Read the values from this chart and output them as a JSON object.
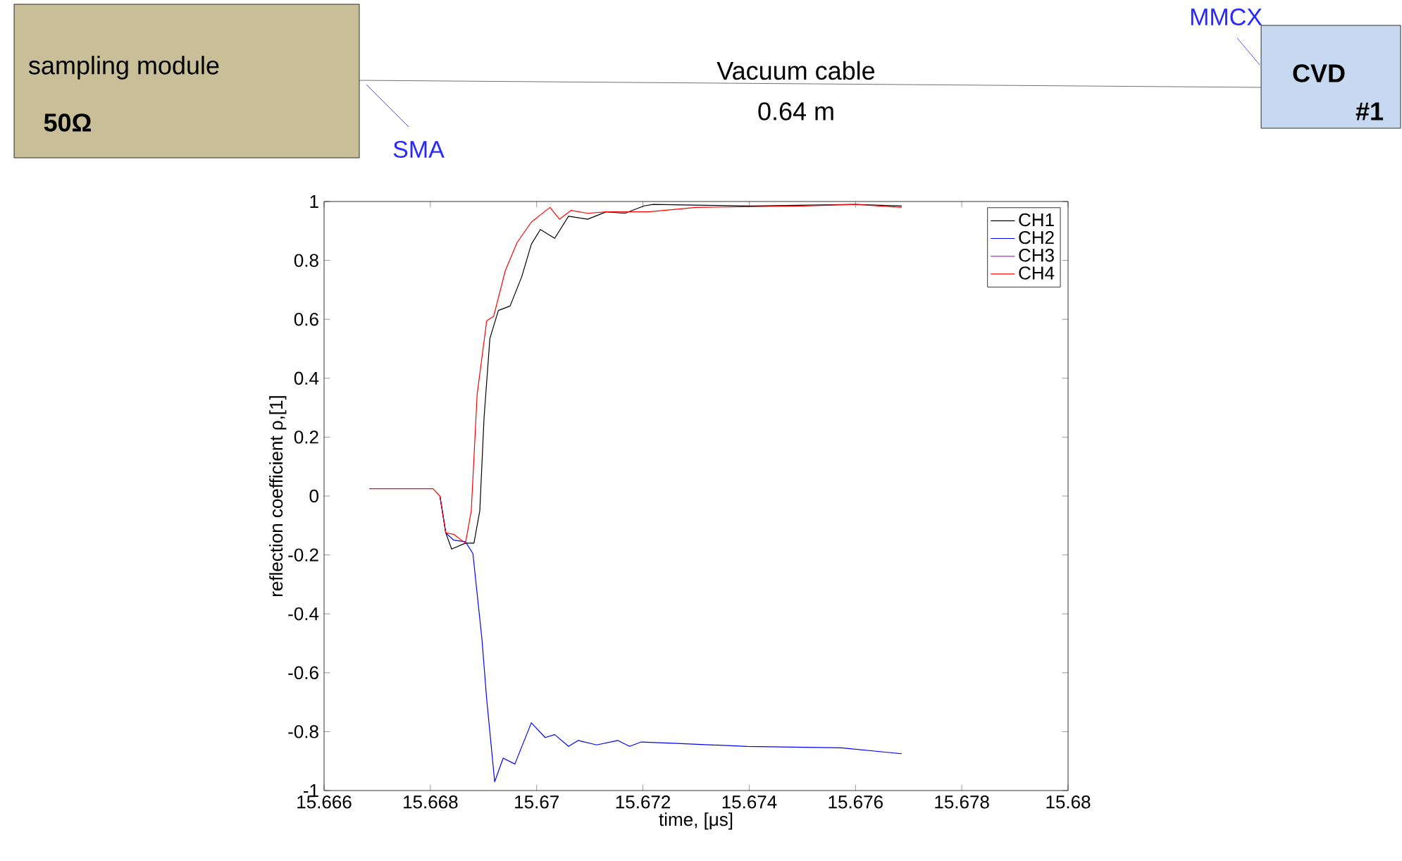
{
  "chart_data": {
    "type": "line",
    "xlabel": "time, [μs]",
    "ylabel": "reflection coefficient ρ,[1]",
    "xlim": [
      15.666,
      15.68
    ],
    "ylim": [
      -1,
      1
    ],
    "xticks": [
      15.666,
      15.668,
      15.67,
      15.672,
      15.674,
      15.676,
      15.678,
      15.68
    ],
    "yticks": [
      -1,
      -0.8,
      -0.6,
      -0.4,
      -0.2,
      0,
      0.2,
      0.4,
      0.6,
      0.8,
      1
    ],
    "legend": "top right",
    "grid": false,
    "marker": "none",
    "line_style": "solid",
    "annotations": [
      "sampling module",
      "50Ω",
      "Vacuum cable",
      "0.64 m",
      "SMA",
      "MMCX",
      "CVD",
      "#1"
    ],
    "series": [
      {
        "name": "CH1",
        "color": "#000000",
        "x": [
          15.66818,
          15.66829,
          15.6684,
          15.66866,
          15.66882,
          15.66893,
          15.66901,
          15.66912,
          15.66928,
          15.6695,
          15.66972,
          15.6699,
          15.67007,
          15.67034,
          15.6706,
          15.67096,
          15.67131,
          15.67166,
          15.67202,
          15.67219,
          15.674,
          15.676,
          15.67687
        ],
        "values": [
          0.0,
          -0.125,
          -0.18,
          -0.16,
          -0.16,
          -0.05,
          0.265,
          0.535,
          0.63,
          0.645,
          0.745,
          0.855,
          0.905,
          0.875,
          0.95,
          0.94,
          0.965,
          0.96,
          0.985,
          0.99,
          0.985,
          0.99,
          0.985
        ]
      },
      {
        "name": "CH2",
        "color": "#0000ff",
        "x": [
          15.66818,
          15.66829,
          15.66844,
          15.66866,
          15.6688,
          15.66897,
          15.66906,
          15.66921,
          15.66937,
          15.66959,
          15.6699,
          15.67016,
          15.67034,
          15.6706,
          15.67078,
          15.67113,
          15.67153,
          15.67175,
          15.67197,
          15.67264,
          15.67396,
          15.67573,
          15.67687
        ],
        "values": [
          0.0,
          -0.125,
          -0.15,
          -0.155,
          -0.195,
          -0.485,
          -0.69,
          -0.97,
          -0.89,
          -0.91,
          -0.77,
          -0.82,
          -0.81,
          -0.85,
          -0.83,
          -0.845,
          -0.83,
          -0.85,
          -0.835,
          -0.84,
          -0.85,
          -0.855,
          -0.875
        ]
      },
      {
        "name": "CH3",
        "color": "#ff00ff"
      },
      {
        "name": "CH4",
        "color": "#ff0000",
        "x": [
          15.66685,
          15.66805,
          15.66818,
          15.66829,
          15.66844,
          15.66866,
          15.66877,
          15.66888,
          15.66906,
          15.66919,
          15.66941,
          15.66963,
          15.6699,
          15.67025,
          15.67043,
          15.67065,
          15.67096,
          15.67131,
          15.67211,
          15.673,
          15.675,
          15.676,
          15.67687
        ],
        "values": [
          0.025,
          0.025,
          0.0,
          -0.125,
          -0.13,
          -0.16,
          -0.05,
          0.345,
          0.595,
          0.61,
          0.765,
          0.86,
          0.93,
          0.98,
          0.94,
          0.97,
          0.96,
          0.965,
          0.965,
          0.98,
          0.985,
          0.99,
          0.98
        ]
      }
    ]
  }
}
